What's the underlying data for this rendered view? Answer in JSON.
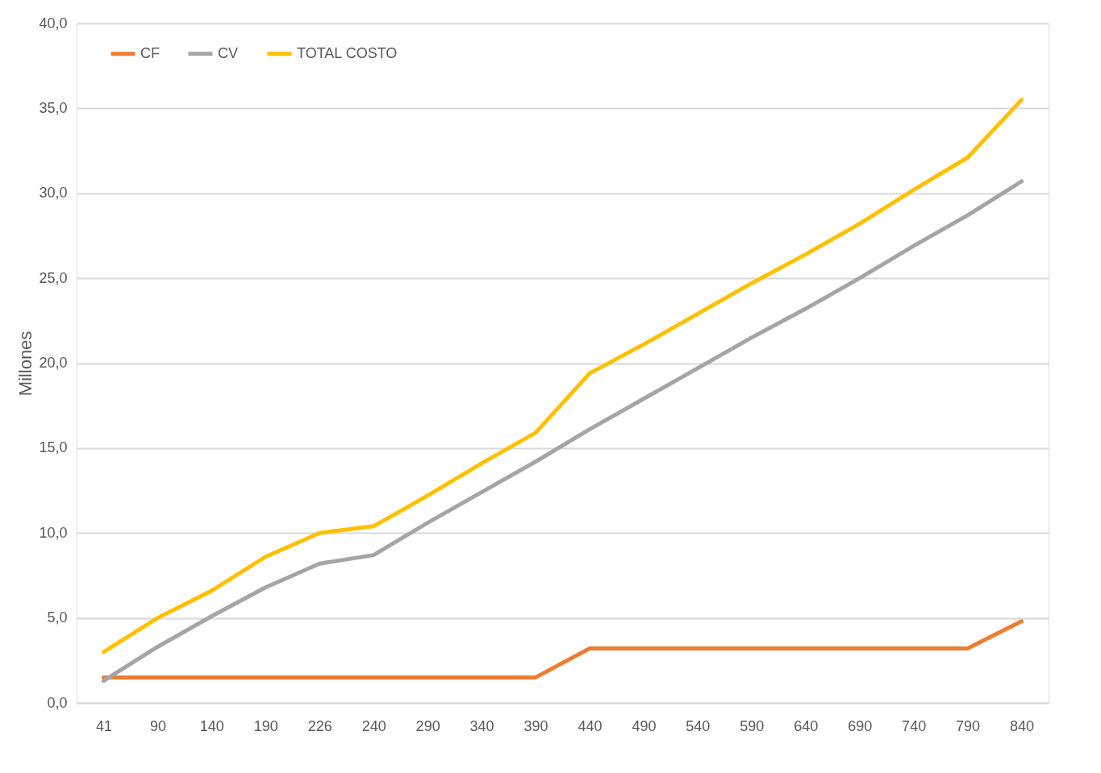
{
  "chart_data": {
    "type": "line",
    "ylabel": "Millones",
    "categories": [
      "41",
      "90",
      "140",
      "190",
      "226",
      "240",
      "290",
      "340",
      "390",
      "440",
      "490",
      "540",
      "590",
      "640",
      "690",
      "740",
      "790",
      "840"
    ],
    "series": [
      {
        "name": "CF",
        "color": "#ed7d31",
        "values": [
          1.5,
          1.5,
          1.5,
          1.5,
          1.5,
          1.5,
          1.5,
          1.5,
          1.5,
          3.2,
          3.2,
          3.2,
          3.2,
          3.2,
          3.2,
          3.2,
          3.2,
          4.8
        ]
      },
      {
        "name": "CV",
        "color": "#a5a5a5",
        "values": [
          1.3,
          3.3,
          5.1,
          6.8,
          8.2,
          8.7,
          10.6,
          12.4,
          14.2,
          16.1,
          17.9,
          19.7,
          21.5,
          23.2,
          25.0,
          26.9,
          28.7,
          30.7
        ]
      },
      {
        "name": "TOTAL COSTO",
        "color": "#ffc000",
        "values": [
          3.0,
          5.0,
          6.6,
          8.6,
          10.0,
          10.4,
          12.2,
          14.1,
          15.9,
          19.4,
          21.1,
          22.9,
          24.7,
          26.4,
          28.2,
          30.2,
          32.1,
          35.5
        ]
      }
    ],
    "ylim": [
      0,
      40
    ],
    "yticks": [
      {
        "value": 0,
        "label": "0,0"
      },
      {
        "value": 5,
        "label": "5,0"
      },
      {
        "value": 10,
        "label": "10,0"
      },
      {
        "value": 15,
        "label": "15,0"
      },
      {
        "value": 20,
        "label": "20,0"
      },
      {
        "value": 25,
        "label": "25,0"
      },
      {
        "value": 30,
        "label": "30,0"
      },
      {
        "value": 35,
        "label": "35,0"
      },
      {
        "value": 40,
        "label": "40,0"
      }
    ],
    "grid": "y",
    "legend": "top left",
    "marker": "none",
    "line_style": "solid"
  }
}
